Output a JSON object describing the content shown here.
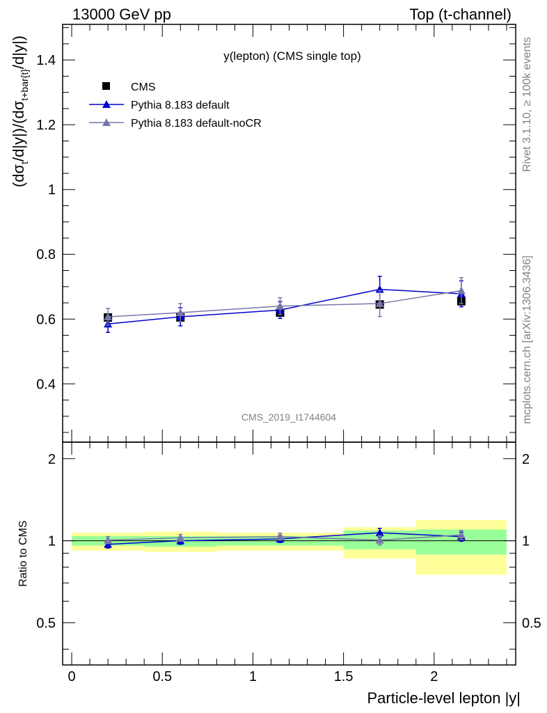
{
  "header": {
    "left": "13000 GeV pp",
    "right": "Top (t-channel)"
  },
  "side": {
    "rivet": "Rivet 3.1.10, ≥ 100k events",
    "mcplots": "mcplots.cern.ch [arXiv:1306.3436]"
  },
  "plot_title": "y(lepton) (CMS single top)",
  "watermark": "CMS_2019_I1744604",
  "colors": {
    "cms": "#000000",
    "default": "#0000cc",
    "nocr": "#7777aa",
    "band_inner": "#99ff99",
    "band_outer": "#ffff99"
  },
  "chart_data": {
    "type": "scatter",
    "main": {
      "ylabel": "(dσt/d|y|)/(dσt+bar{t}/d|y|)",
      "ylim": [
        0.22,
        1.51
      ],
      "yticks": [
        0.4,
        0.6,
        0.8,
        1.0,
        1.2,
        1.4
      ],
      "ytick_labels": [
        "0.4",
        "0.6",
        "0.8",
        "1",
        "1.2",
        "1.4"
      ]
    },
    "ratio": {
      "ylabel": "Ratio to CMS",
      "ylim": [
        0.35,
        2.3
      ],
      "yticks": [
        0.5,
        1,
        2
      ],
      "ytick_labels": [
        "0.5",
        "1",
        "2"
      ]
    },
    "xlabel": "Particle-level lepton |y|",
    "xlim": [
      -0.05,
      2.45
    ],
    "xticks": [
      0,
      0.5,
      1,
      1.5,
      2
    ],
    "xtick_labels": [
      "0",
      "0.5",
      "1",
      "1.5",
      "2"
    ],
    "bins": [
      {
        "lo": 0.0,
        "hi": 0.4,
        "band_inner": [
          0.96,
          1.04
        ],
        "band_outer": [
          0.92,
          1.07
        ]
      },
      {
        "lo": 0.4,
        "hi": 0.8,
        "band_inner": [
          0.95,
          1.04
        ],
        "band_outer": [
          0.91,
          1.08
        ]
      },
      {
        "lo": 0.8,
        "hi": 1.5,
        "band_inner": [
          0.96,
          1.04
        ],
        "band_outer": [
          0.92,
          1.07
        ]
      },
      {
        "lo": 1.5,
        "hi": 1.9,
        "band_inner": [
          0.93,
          1.09
        ],
        "band_outer": [
          0.86,
          1.12
        ]
      },
      {
        "lo": 1.9,
        "hi": 2.4,
        "band_inner": [
          0.89,
          1.1
        ],
        "band_outer": [
          0.75,
          1.19
        ]
      }
    ],
    "series": [
      {
        "name": "CMS",
        "marker": "square",
        "color": "#000000",
        "x": [
          0.2,
          0.6,
          1.15,
          1.7,
          2.15
        ],
        "y": [
          0.605,
          0.605,
          0.62,
          0.645,
          0.655
        ],
        "err": [
          0.005,
          0.005,
          0.005,
          0.005,
          0.005
        ],
        "ratio": [
          1,
          1,
          1,
          1,
          1
        ],
        "ratio_err": [
          0,
          0,
          0,
          0,
          0
        ]
      },
      {
        "name": "Pythia 8.183 default",
        "marker": "triangle",
        "color": "#0000cc",
        "x": [
          0.2,
          0.6,
          1.15,
          1.7,
          2.15
        ],
        "y": [
          0.585,
          0.607,
          0.628,
          0.692,
          0.678
        ],
        "err": [
          0.026,
          0.028,
          0.026,
          0.04,
          0.04
        ],
        "ratio": [
          0.97,
          1.0,
          1.015,
          1.07,
          1.035
        ],
        "ratio_err": [
          0.03,
          0.03,
          0.03,
          0.04,
          0.04
        ]
      },
      {
        "name": "Pythia 8.183 default-noCR",
        "marker": "triangle",
        "color": "#7777aa",
        "x": [
          0.2,
          0.6,
          1.15,
          1.7,
          2.15
        ],
        "y": [
          0.607,
          0.62,
          0.64,
          0.648,
          0.688
        ],
        "err": [
          0.026,
          0.028,
          0.026,
          0.04,
          0.04
        ],
        "ratio": [
          1.005,
          1.025,
          1.035,
          1.005,
          1.05
        ],
        "ratio_err": [
          0.03,
          0.03,
          0.03,
          0.04,
          0.04
        ]
      }
    ]
  }
}
